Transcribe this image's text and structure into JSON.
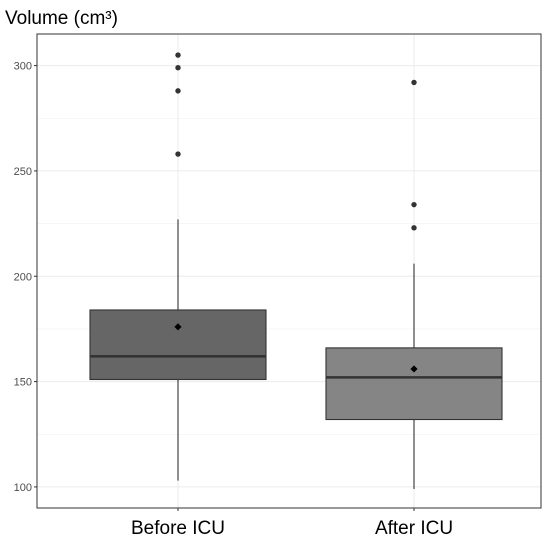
{
  "chart_data": {
    "type": "boxplot",
    "title": "Volume (cm³)",
    "xlabel": "",
    "ylabel": "",
    "categories": [
      "Before ICU",
      "After ICU"
    ],
    "ylim": [
      90,
      315
    ],
    "yticks": [
      100,
      150,
      200,
      250,
      300
    ],
    "grid": true,
    "boxes": [
      {
        "category": "Before ICU",
        "whisker_low": 103,
        "q1": 151,
        "median": 162,
        "q3": 184,
        "whisker_high": 227,
        "mean": 176,
        "outliers": [
          258,
          288,
          299,
          305
        ],
        "fill": "#666666"
      },
      {
        "category": "After ICU",
        "whisker_low": 99,
        "q1": 132,
        "median": 152,
        "q3": 166,
        "whisker_high": 206,
        "mean": 156,
        "outliers": [
          223,
          234,
          292
        ],
        "fill": "#858585"
      }
    ]
  }
}
